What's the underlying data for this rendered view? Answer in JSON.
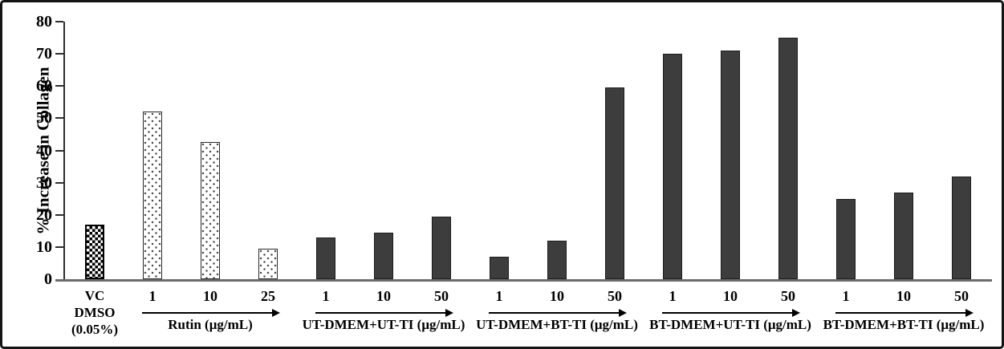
{
  "chart_data": {
    "type": "bar",
    "title": "",
    "xlabel": "",
    "ylabel": "% Increase in Collagen",
    "ylim": [
      0,
      80
    ],
    "yticks": [
      0,
      10,
      20,
      30,
      40,
      50,
      60,
      70,
      80
    ],
    "grid": false,
    "legend": false,
    "groups": [
      {
        "name_lines": [
          "VC",
          "DMSO",
          "(0.05%)"
        ],
        "arrow": false,
        "pattern": "checker",
        "bars": [
          {
            "label": "",
            "value": 17
          }
        ]
      },
      {
        "name": "Rutin (μg/mL)",
        "arrow": true,
        "pattern": "dots",
        "bars": [
          {
            "label": "1",
            "value": 52
          },
          {
            "label": "10",
            "value": 42.5
          },
          {
            "label": "25",
            "value": 9.5
          }
        ]
      },
      {
        "name": "UT-DMEM+UT-TI (μg/mL)",
        "arrow": true,
        "pattern": "solid",
        "bars": [
          {
            "label": "1",
            "value": 13
          },
          {
            "label": "10",
            "value": 14.5
          },
          {
            "label": "50",
            "value": 19.5
          }
        ]
      },
      {
        "name": "UT-DMEM+BT-TI (μg/mL)",
        "arrow": true,
        "pattern": "solid",
        "bars": [
          {
            "label": "1",
            "value": 7
          },
          {
            "label": "10",
            "value": 12
          },
          {
            "label": "50",
            "value": 59.5
          }
        ]
      },
      {
        "name": "BT-DMEM+UT-TI (μg/mL)",
        "arrow": true,
        "pattern": "solid",
        "bars": [
          {
            "label": "1",
            "value": 70
          },
          {
            "label": "10",
            "value": 71
          },
          {
            "label": "50",
            "value": 75
          }
        ]
      },
      {
        "name": "BT-DMEM+BT-TI (μg/mL)",
        "arrow": true,
        "pattern": "solid",
        "bars": [
          {
            "label": "1",
            "value": 25
          },
          {
            "label": "10",
            "value": 27
          },
          {
            "label": "50",
            "value": 32
          }
        ]
      }
    ],
    "colors": {
      "solid_bar": "#3d3d3d",
      "bar_border": "#1c1c1c",
      "baseline": "#6b6b6b",
      "axis": "#2e2e2e",
      "text": "#000000",
      "figure_border": "#141414",
      "background": "#ffffff"
    }
  }
}
